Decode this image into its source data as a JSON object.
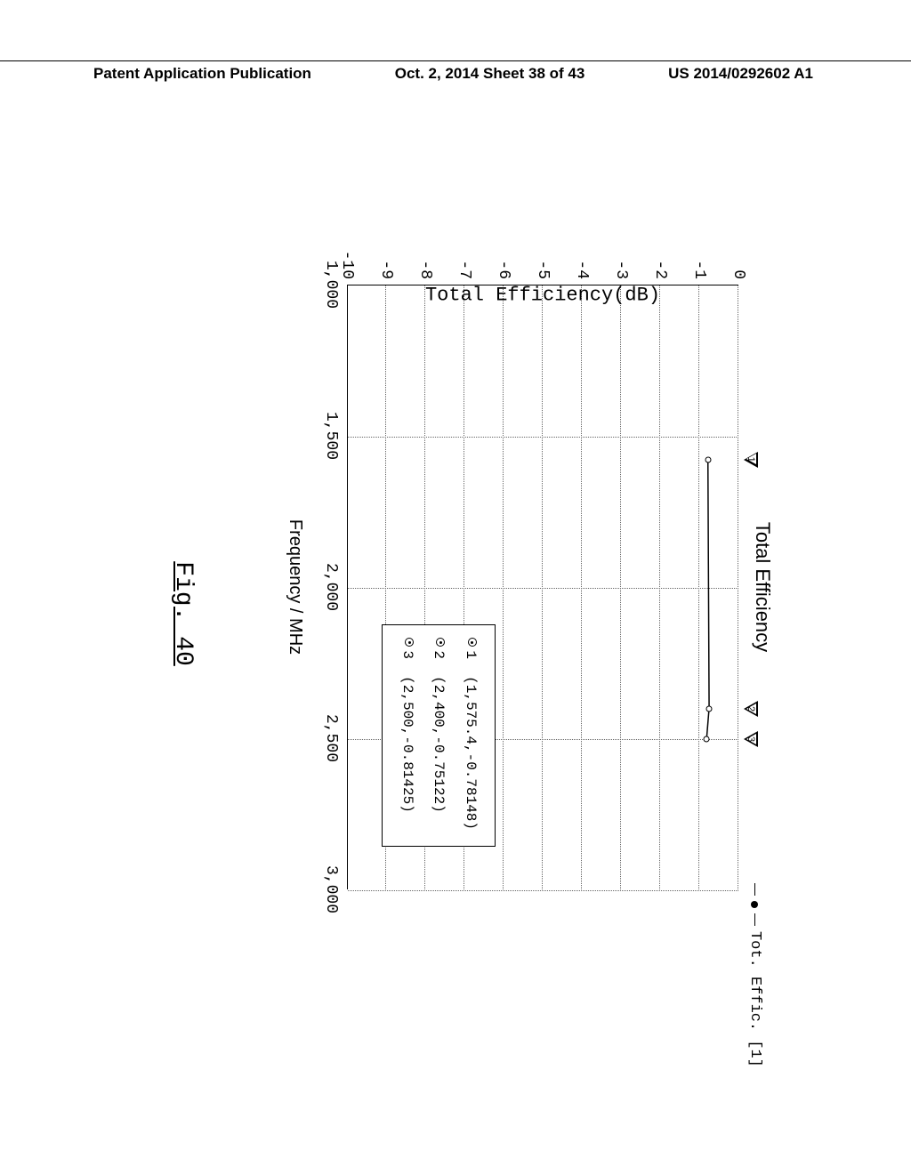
{
  "header": {
    "left": "Patent Application Publication",
    "center": "Oct. 2, 2014  Sheet 38 of 43",
    "right": "US 2014/0292602 A1"
  },
  "figure_label": "Fig. 40",
  "chart": {
    "type": "line",
    "title": "Total Efficiency",
    "xlabel": "Frequency / MHz",
    "ylabel": "Total Efficiency(dB)",
    "xlim": [
      1000,
      3000
    ],
    "ylim": [
      -10,
      0
    ],
    "xticks": [
      1000,
      1500,
      2000,
      2500,
      3000
    ],
    "xtick_labels": [
      "1,000",
      "1,500",
      "2,000",
      "2,500",
      "3,000"
    ],
    "yticks": [
      0,
      -1,
      -2,
      -3,
      -4,
      -5,
      -6,
      -7,
      -8,
      -9,
      -10
    ],
    "grid_color": "#666666",
    "line_color": "#000000",
    "background_color": "#ffffff",
    "series_name": "Tot. Effic. [1]",
    "data": {
      "x": [
        1575.4,
        2400,
        2500
      ],
      "y": [
        -0.78148,
        -0.75122,
        -0.81425
      ]
    },
    "markers": [
      {
        "id": "1",
        "label": "(1,575.4,-0.78148)",
        "x": 1575.4,
        "y": -0.78148
      },
      {
        "id": "2",
        "label": "(2,400,-0.75122)",
        "x": 2400,
        "y": -0.75122
      },
      {
        "id": "3",
        "label": "(2,500,-0.81425)",
        "x": 2500,
        "y": -0.81425
      }
    ]
  }
}
